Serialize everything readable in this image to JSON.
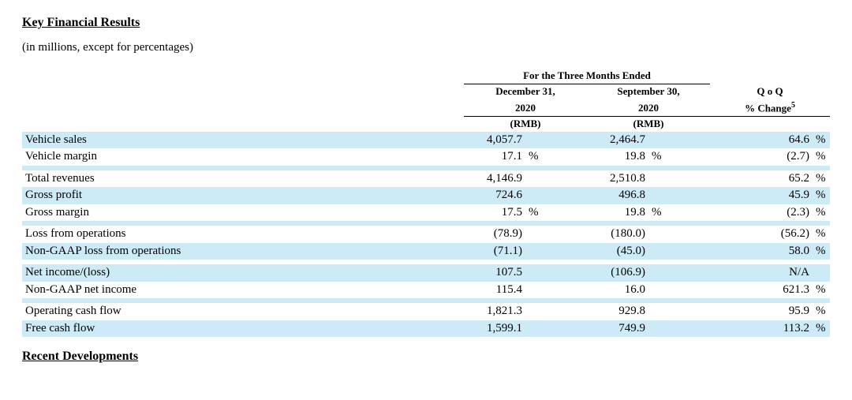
{
  "title": "Key Financial Results",
  "subtitle": "(in millions, except for percentages)",
  "footer_heading": "Recent Developments",
  "colors": {
    "row_shade": "#cdeaf7",
    "text": "#000000",
    "background": "#ffffff",
    "border": "#000000"
  },
  "typography": {
    "font_family": "Times New Roman",
    "body_fontsize_pt": 11,
    "heading_fontsize_pt": 12
  },
  "table": {
    "super_header": "For the Three Months Ended",
    "columns": [
      {
        "line1": "December 31,",
        "line2": "2020",
        "line3": "(RMB)"
      },
      {
        "line1": "September 30,",
        "line2": "2020",
        "line3": "(RMB)"
      },
      {
        "line1": "Q o Q",
        "line2": "% Change",
        "footnote": "5"
      }
    ],
    "rows": [
      {
        "label": "Vehicle sales",
        "c1": "4,057.7",
        "u1": "",
        "c2": "2,464.7",
        "u2": "",
        "c3": "64.6",
        "u3": "%",
        "shade": true
      },
      {
        "label": "Vehicle margin",
        "c1": "17.1",
        "u1": "%",
        "c2": "19.8",
        "u2": "%",
        "c3": "(2.7)",
        "u3": "%",
        "shade": false
      },
      {
        "spacer": true,
        "shade": true
      },
      {
        "label": "Total revenues",
        "c1": "4,146.9",
        "u1": "",
        "c2": "2,510.8",
        "u2": "",
        "c3": "65.2",
        "u3": "%",
        "shade": false
      },
      {
        "label": "Gross profit",
        "c1": "724.6",
        "u1": "",
        "c2": "496.8",
        "u2": "",
        "c3": "45.9",
        "u3": "%",
        "shade": true
      },
      {
        "label": "Gross margin",
        "c1": "17.5",
        "u1": "%",
        "c2": "19.8",
        "u2": "%",
        "c3": "(2.3)",
        "u3": "%",
        "shade": false
      },
      {
        "spacer": true,
        "shade": true
      },
      {
        "label": "Loss from operations",
        "c1": "(78.9)",
        "u1": "",
        "c2": "(180.0)",
        "u2": "",
        "c3": "(56.2)",
        "u3": "%",
        "shade": false
      },
      {
        "label": "Non-GAAP loss from operations",
        "c1": "(71.1)",
        "u1": "",
        "c2": "(45.0)",
        "u2": "",
        "c3": "58.0",
        "u3": "%",
        "shade": true
      },
      {
        "spacer": true,
        "shade": false
      },
      {
        "label": "Net income/(loss)",
        "c1": "107.5",
        "u1": "",
        "c2": "(106.9)",
        "u2": "",
        "c3": "N/A",
        "u3": "",
        "shade": true
      },
      {
        "label": "Non-GAAP net income",
        "c1": "115.4",
        "u1": "",
        "c2": "16.0",
        "u2": "",
        "c3": "621.3",
        "u3": "%",
        "shade": false
      },
      {
        "spacer": true,
        "shade": true
      },
      {
        "label": "Operating cash flow",
        "c1": "1,821.3",
        "u1": "",
        "c2": "929.8",
        "u2": "",
        "c3": "95.9",
        "u3": "%",
        "shade": false
      },
      {
        "label": "Free cash flow",
        "c1": "1,599.1",
        "u1": "",
        "c2": "749.9",
        "u2": "",
        "c3": "113.2",
        "u3": "%",
        "shade": true
      }
    ]
  }
}
